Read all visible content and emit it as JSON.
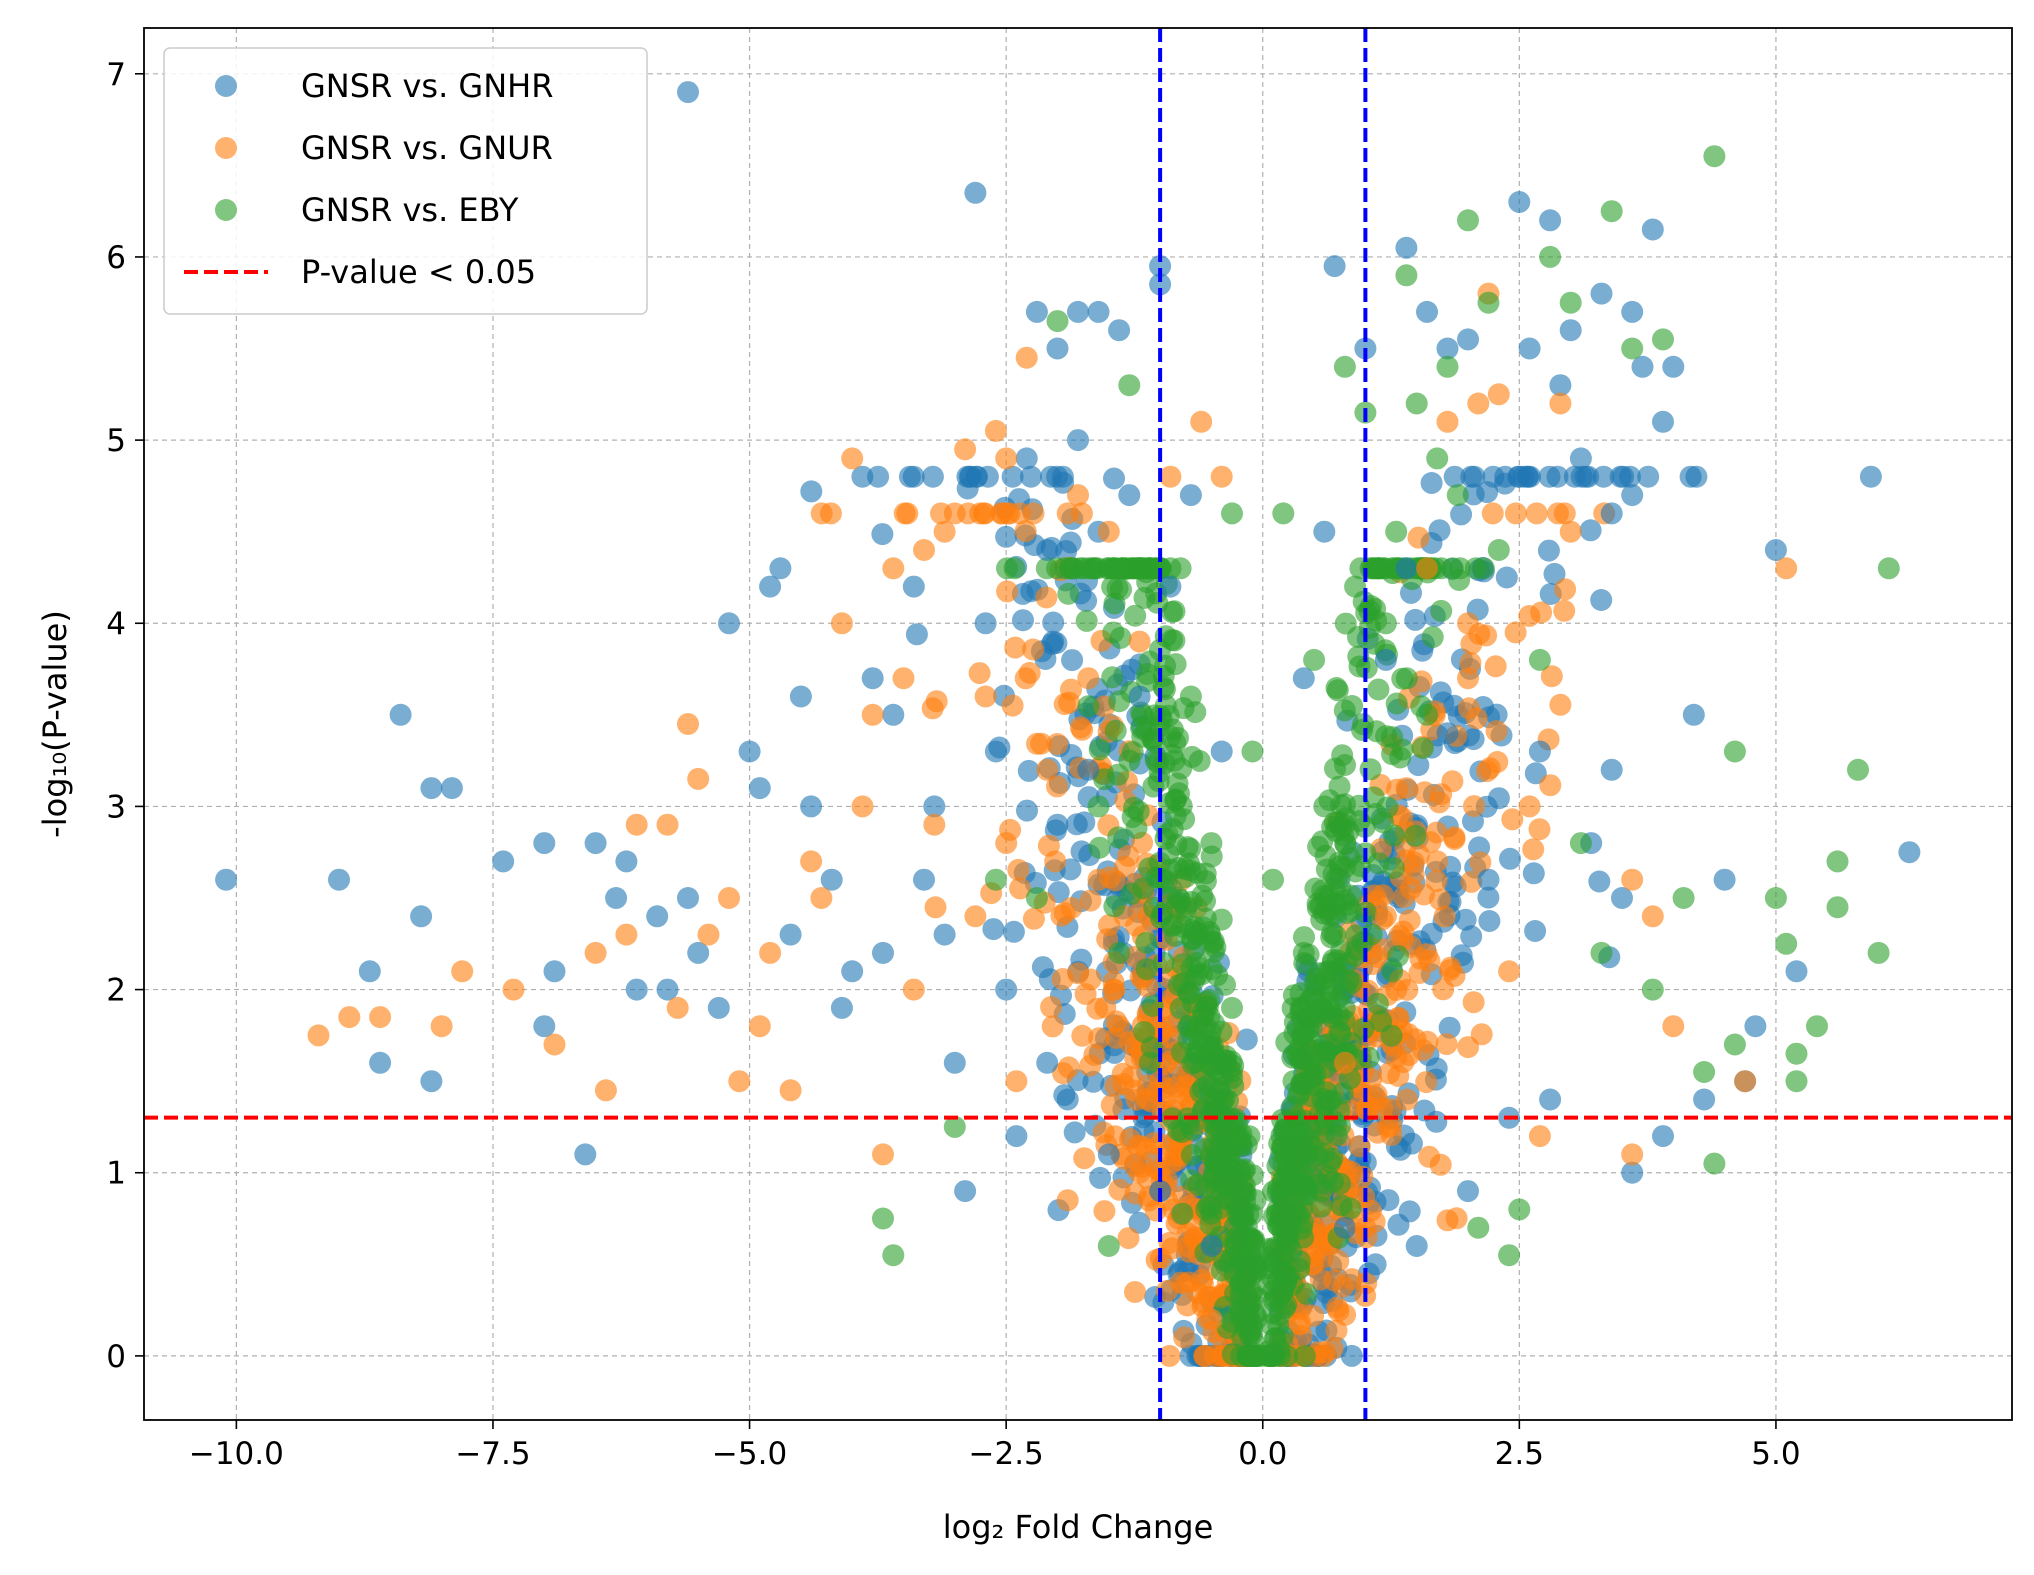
{
  "chart_data": {
    "type": "scatter",
    "title": "",
    "xlabel": "log₂ Fold Change",
    "ylabel": "-log₁₀(P-value)",
    "xlim": [
      -10.9,
      7.3
    ],
    "ylim": [
      -0.35,
      7.25
    ],
    "xticks": [
      -10.0,
      -7.5,
      -5.0,
      -2.5,
      0.0,
      2.5,
      5.0
    ],
    "xtick_labels": [
      "−10.0",
      "−7.5",
      "−5.0",
      "−2.5",
      "0.0",
      "2.5",
      "5.0"
    ],
    "yticks": [
      0,
      1,
      2,
      3,
      4,
      5,
      6,
      7
    ],
    "ytick_labels": [
      "0",
      "1",
      "2",
      "3",
      "4",
      "5",
      "6",
      "7"
    ],
    "grid": true,
    "legend_position": "top-left",
    "series": [
      {
        "name": "GNSR vs. GNHR",
        "color": "#1f77b4",
        "points": [
          [
            -10.1,
            2.6
          ],
          [
            -9.0,
            2.6
          ],
          [
            -8.4,
            3.5
          ],
          [
            -8.1,
            3.1
          ],
          [
            -7.9,
            3.1
          ],
          [
            -8.2,
            2.4
          ],
          [
            -8.6,
            1.6
          ],
          [
            -8.7,
            2.1
          ],
          [
            -8.1,
            1.5
          ],
          [
            -7.4,
            2.7
          ],
          [
            -7.0,
            2.8
          ],
          [
            -6.9,
            2.1
          ],
          [
            -7.0,
            1.8
          ],
          [
            -6.6,
            1.1
          ],
          [
            -6.5,
            2.8
          ],
          [
            -6.3,
            2.5
          ],
          [
            -6.2,
            2.7
          ],
          [
            -6.1,
            2.0
          ],
          [
            -5.9,
            2.4
          ],
          [
            -5.6,
            2.5
          ],
          [
            -5.6,
            6.9
          ],
          [
            -5.2,
            4.0
          ],
          [
            -5.0,
            3.3
          ],
          [
            -4.9,
            3.1
          ],
          [
            -4.8,
            4.2
          ],
          [
            -4.7,
            4.3
          ],
          [
            -4.5,
            3.6
          ],
          [
            -4.4,
            3.0
          ],
          [
            -4.2,
            2.6
          ],
          [
            -4.0,
            2.1
          ],
          [
            -3.8,
            3.7
          ],
          [
            -3.6,
            3.5
          ],
          [
            -3.4,
            4.2
          ],
          [
            -3.2,
            3.0
          ],
          [
            -3.1,
            2.3
          ],
          [
            -3.0,
            1.6
          ],
          [
            -2.9,
            0.9
          ],
          [
            -2.8,
            6.35
          ],
          [
            -2.7,
            4.0
          ],
          [
            -2.5,
            2.0
          ],
          [
            -2.4,
            1.2
          ],
          [
            -2.2,
            5.7
          ],
          [
            -2.0,
            5.5
          ],
          [
            -1.8,
            5.7
          ],
          [
            -1.6,
            5.7
          ],
          [
            -1.4,
            5.6
          ],
          [
            -1.0,
            5.95
          ],
          [
            -1.0,
            5.85
          ],
          [
            -1.8,
            5.0
          ],
          [
            -1.6,
            4.5
          ],
          [
            -1.3,
            4.7
          ],
          [
            -2.1,
            4.4
          ],
          [
            -2.3,
            4.9
          ],
          [
            0.7,
            5.95
          ],
          [
            1.0,
            5.5
          ],
          [
            1.4,
            6.05
          ],
          [
            1.6,
            5.7
          ],
          [
            1.8,
            5.5
          ],
          [
            2.0,
            5.55
          ],
          [
            2.5,
            6.3
          ],
          [
            2.8,
            6.2
          ],
          [
            3.0,
            5.6
          ],
          [
            3.3,
            5.8
          ],
          [
            3.7,
            5.4
          ],
          [
            3.8,
            6.15
          ],
          [
            3.9,
            5.1
          ],
          [
            4.0,
            5.4
          ],
          [
            3.6,
            5.7
          ],
          [
            2.6,
            5.5
          ],
          [
            2.9,
            5.3
          ],
          [
            3.1,
            4.9
          ],
          [
            3.4,
            4.6
          ],
          [
            3.6,
            4.7
          ],
          [
            5.0,
            4.4
          ],
          [
            4.2,
            3.5
          ],
          [
            4.5,
            2.6
          ],
          [
            4.8,
            1.8
          ],
          [
            5.2,
            2.1
          ],
          [
            6.3,
            2.75
          ],
          [
            4.7,
            1.5
          ],
          [
            4.3,
            1.4
          ],
          [
            3.9,
            1.2
          ],
          [
            3.6,
            1.0
          ],
          [
            2.8,
            1.4
          ],
          [
            2.4,
            1.3
          ],
          [
            2.0,
            0.9
          ],
          [
            1.5,
            0.6
          ],
          [
            1.1,
            0.5
          ],
          [
            0.8,
            0.7
          ],
          [
            -0.5,
            0.6
          ],
          [
            -1.0,
            0.9
          ],
          [
            -1.5,
            1.1
          ],
          [
            -1.9,
            1.4
          ],
          [
            -2.1,
            1.6
          ],
          [
            3.2,
            2.8
          ],
          [
            3.4,
            3.2
          ],
          [
            3.5,
            2.5
          ],
          [
            2.7,
            3.3
          ],
          [
            2.2,
            2.6
          ],
          [
            1.8,
            3.4
          ],
          [
            1.4,
            4.3
          ],
          [
            1.2,
            3.8
          ],
          [
            0.6,
            4.5
          ],
          [
            0.4,
            3.7
          ],
          [
            -0.4,
            3.3
          ],
          [
            -0.7,
            4.7
          ],
          [
            -0.9,
            4.2
          ],
          [
            -1.2,
            3.6
          ],
          [
            -1.7,
            3.2
          ],
          [
            -2.0,
            2.9
          ],
          [
            -2.6,
            3.3
          ],
          [
            -3.3,
            2.6
          ],
          [
            -3.7,
            2.2
          ],
          [
            -4.1,
            1.9
          ],
          [
            -4.6,
            2.3
          ],
          [
            -5.3,
            1.9
          ],
          [
            -5.5,
            2.2
          ],
          [
            -5.8,
            2.0
          ]
        ]
      },
      {
        "name": "GNSR vs. GNUR",
        "color": "#ff7f0e",
        "points": [
          [
            -9.2,
            1.75
          ],
          [
            -8.9,
            1.85
          ],
          [
            -8.6,
            1.85
          ],
          [
            -8.0,
            1.8
          ],
          [
            -7.8,
            2.1
          ],
          [
            -7.3,
            2.0
          ],
          [
            -6.9,
            1.7
          ],
          [
            -6.4,
            1.45
          ],
          [
            -6.2,
            2.3
          ],
          [
            -6.1,
            2.9
          ],
          [
            -5.8,
            2.9
          ],
          [
            -5.6,
            3.45
          ],
          [
            -5.5,
            3.15
          ],
          [
            -5.4,
            2.3
          ],
          [
            -5.2,
            2.5
          ],
          [
            -5.1,
            1.5
          ],
          [
            -4.8,
            2.2
          ],
          [
            -4.6,
            1.45
          ],
          [
            -4.4,
            2.7
          ],
          [
            -4.1,
            4.0
          ],
          [
            -4.0,
            4.9
          ],
          [
            -3.8,
            3.5
          ],
          [
            -3.6,
            4.3
          ],
          [
            -3.5,
            3.7
          ],
          [
            -3.3,
            4.4
          ],
          [
            -3.1,
            4.5
          ],
          [
            -3.0,
            4.6
          ],
          [
            -2.9,
            4.95
          ],
          [
            -2.6,
            5.05
          ],
          [
            -2.5,
            4.9
          ],
          [
            -2.3,
            5.45
          ],
          [
            -1.8,
            4.7
          ],
          [
            -1.5,
            4.5
          ],
          [
            -0.6,
            5.1
          ],
          [
            -0.4,
            4.8
          ],
          [
            -0.9,
            4.8
          ],
          [
            1.8,
            5.1
          ],
          [
            2.1,
            5.2
          ],
          [
            2.3,
            5.25
          ],
          [
            2.2,
            5.8
          ],
          [
            2.9,
            5.2
          ],
          [
            3.0,
            4.5
          ],
          [
            2.0,
            4.0
          ],
          [
            1.6,
            4.3
          ],
          [
            5.1,
            4.3
          ],
          [
            3.8,
            2.4
          ],
          [
            3.6,
            2.6
          ],
          [
            4.0,
            1.8
          ],
          [
            4.7,
            1.5
          ],
          [
            3.6,
            1.1
          ],
          [
            2.7,
            1.2
          ],
          [
            -3.7,
            1.1
          ],
          [
            -2.4,
            1.5
          ],
          [
            -1.9,
            0.85
          ],
          [
            -1.2,
            1.0
          ],
          [
            -3.9,
            3.0
          ],
          [
            -2.7,
            3.6
          ],
          [
            -2.5,
            2.8
          ],
          [
            -2.8,
            2.4
          ],
          [
            -2.1,
            3.2
          ],
          [
            -1.6,
            2.6
          ],
          [
            -1.4,
            1.8
          ],
          [
            -1.2,
            3.9
          ],
          [
            -1.7,
            3.7
          ],
          [
            -3.4,
            2.0
          ],
          [
            -3.2,
            2.9
          ],
          [
            -4.3,
            2.5
          ],
          [
            -4.9,
            1.8
          ],
          [
            -5.7,
            1.9
          ],
          [
            -6.5,
            2.2
          ],
          [
            1.4,
            3.1
          ],
          [
            1.7,
            2.7
          ],
          [
            2.0,
            3.7
          ],
          [
            2.4,
            2.1
          ],
          [
            2.6,
            3.0
          ],
          [
            1.2,
            2.4
          ],
          [
            0.8,
            1.6
          ],
          [
            1.0,
            0.7
          ],
          [
            -0.8,
            0.4
          ],
          [
            -0.5,
            0.2
          ]
        ]
      },
      {
        "name": "GNSR vs. EBY",
        "color": "#2ca02c",
        "points": [
          [
            -3.7,
            0.75
          ],
          [
            -3.6,
            0.55
          ],
          [
            -3.0,
            1.25
          ],
          [
            -1.5,
            0.6
          ],
          [
            -1.3,
            5.3
          ],
          [
            -2.0,
            5.65
          ],
          [
            -0.8,
            4.3
          ],
          [
            -0.3,
            4.6
          ],
          [
            0.2,
            4.6
          ],
          [
            0.8,
            5.4
          ],
          [
            1.0,
            5.15
          ],
          [
            1.4,
            5.9
          ],
          [
            1.5,
            5.2
          ],
          [
            1.8,
            5.4
          ],
          [
            2.0,
            6.2
          ],
          [
            2.2,
            5.75
          ],
          [
            2.8,
            6.0
          ],
          [
            3.0,
            5.75
          ],
          [
            3.4,
            6.25
          ],
          [
            3.6,
            5.5
          ],
          [
            3.9,
            5.55
          ],
          [
            4.4,
            6.55
          ],
          [
            6.1,
            4.3
          ],
          [
            5.8,
            3.2
          ],
          [
            4.6,
            3.3
          ],
          [
            5.6,
            2.7
          ],
          [
            5.6,
            2.45
          ],
          [
            5.0,
            2.5
          ],
          [
            5.1,
            2.25
          ],
          [
            6.0,
            2.2
          ],
          [
            5.2,
            1.65
          ],
          [
            5.2,
            1.5
          ],
          [
            5.4,
            1.8
          ],
          [
            4.4,
            1.05
          ],
          [
            4.3,
            1.55
          ],
          [
            2.4,
            0.55
          ],
          [
            2.1,
            0.7
          ],
          [
            2.5,
            0.8
          ],
          [
            1.6,
            3.5
          ],
          [
            1.2,
            4.0
          ],
          [
            0.6,
            3.0
          ],
          [
            0.4,
            2.2
          ],
          [
            0.3,
            1.5
          ],
          [
            0.2,
            0.8
          ],
          [
            -0.2,
            0.9
          ],
          [
            -0.3,
            1.9
          ],
          [
            -0.5,
            2.8
          ],
          [
            -0.7,
            3.6
          ],
          [
            -0.9,
            2.5
          ],
          [
            -1.1,
            1.6
          ],
          [
            -1.4,
            2.2
          ],
          [
            -1.6,
            3.0
          ],
          [
            -2.2,
            2.5
          ],
          [
            -2.6,
            2.6
          ],
          [
            3.1,
            2.8
          ],
          [
            3.3,
            2.2
          ],
          [
            3.8,
            2.0
          ],
          [
            4.1,
            2.5
          ],
          [
            4.6,
            1.7
          ],
          [
            2.7,
            3.8
          ],
          [
            2.3,
            4.4
          ],
          [
            1.9,
            4.7
          ],
          [
            1.7,
            4.9
          ],
          [
            1.3,
            4.5
          ],
          [
            0.9,
            4.2
          ],
          [
            -0.1,
            3.3
          ],
          [
            0.1,
            2.6
          ],
          [
            0.5,
            3.8
          ],
          [
            -0.2,
            0.1
          ],
          [
            0.0,
            0.0
          ]
        ]
      }
    ],
    "dense_band": {
      "note": "dense clusters of overlapping points",
      "green_left": {
        "x_center": -0.6,
        "y_max": 3.9
      },
      "green_right": {
        "x_center": 0.8,
        "y_max": 4.3
      }
    },
    "annotations": {
      "hline": {
        "y": 1.301,
        "color": "#ff0000",
        "label": "P-value < 0.05"
      },
      "vlines": [
        {
          "x": -1,
          "color": "#0000ff"
        },
        {
          "x": 1,
          "color": "#0000ff"
        }
      ]
    }
  }
}
